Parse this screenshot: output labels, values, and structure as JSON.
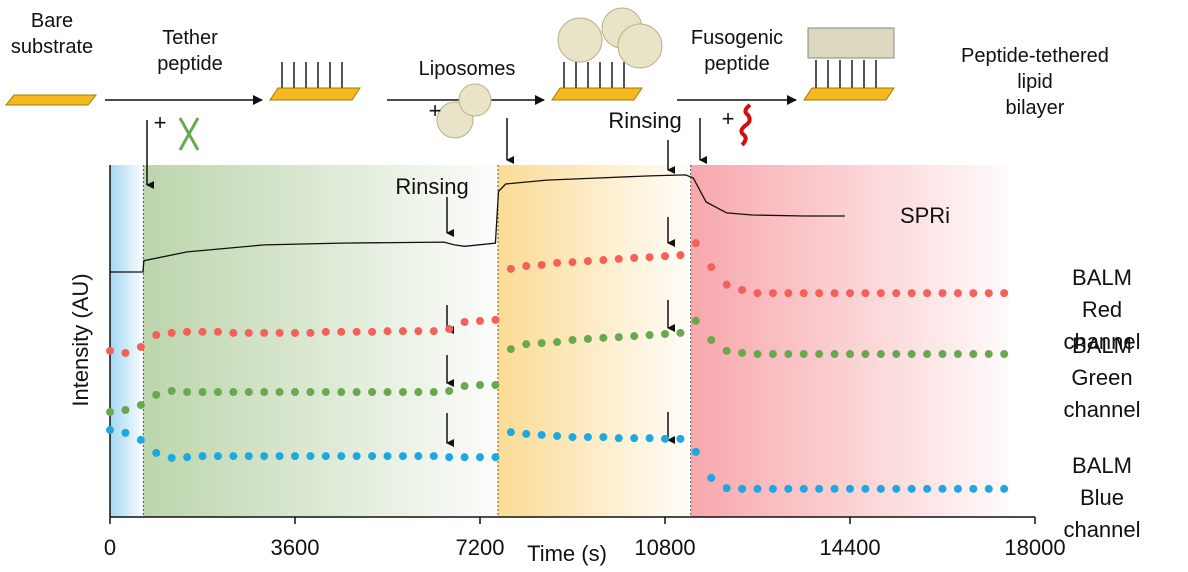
{
  "schematic": {
    "steps": [
      "Bare\nsubstrate",
      "Tether\npeptide",
      "Liposomes",
      "Fusogenic\npeptide",
      "Peptide-tethered lipid\nbilayer"
    ],
    "plus": [
      "+",
      "+",
      "+"
    ],
    "rinsing": "Rinsing"
  },
  "chart_data": {
    "type": "line",
    "xlabel": "Time (s)",
    "ylabel": "Intensity (AU)",
    "annotation": "Rinsing",
    "xlim": [
      0,
      18000
    ],
    "xticks": [
      0,
      3600,
      7200,
      10800,
      14400,
      18000
    ],
    "ylim": [
      0,
      100
    ],
    "regions": [
      {
        "start": 0,
        "end": 650,
        "color": "#9fd6f2"
      },
      {
        "start": 650,
        "end": 7550,
        "color": "#b9d3a8"
      },
      {
        "start": 7550,
        "end": 11300,
        "color": "#fbd98f"
      },
      {
        "start": 11300,
        "end": 17500,
        "color": "#f7a3a8"
      }
    ],
    "x": [
      0,
      300,
      600,
      900,
      1200,
      1500,
      1800,
      2100,
      2400,
      2700,
      3000,
      3300,
      3600,
      3900,
      4200,
      4500,
      4800,
      5100,
      5400,
      5700,
      6000,
      6300,
      6600,
      6900,
      7200,
      7500,
      7800,
      8100,
      8400,
      8700,
      9000,
      9300,
      9600,
      9900,
      10200,
      10500,
      10800,
      11100,
      11400,
      11700,
      12000,
      12300,
      12600,
      12900,
      13200,
      13500,
      13800,
      14100,
      14400,
      14700,
      15000,
      15300,
      15600,
      15900,
      16200,
      16500,
      16800,
      17100,
      17400
    ],
    "series": [
      {
        "name": "SPRi",
        "style": "line",
        "color": "#111111",
        "x": [
          0,
          640,
          660,
          1500,
          3000,
          4500,
          6500,
          6700,
          6900,
          7500,
          7560,
          7700,
          8500,
          9500,
          10500,
          11200,
          11350,
          11600,
          12000,
          12500,
          13500,
          14300
        ],
        "values": [
          69.6,
          69.6,
          72.8,
          75.3,
          77.3,
          77.8,
          78.1,
          77.3,
          76.9,
          77.8,
          92.5,
          94.6,
          95.7,
          96.3,
          96.9,
          97.2,
          96.3,
          89.5,
          86.4,
          85.8,
          85.5,
          85.5
        ]
      },
      {
        "name": "BALM\nRed channel",
        "style": "dots",
        "color": "#f4605a",
        "values": [
          47.2,
          46.6,
          48.3,
          51.7,
          52.3,
          52.6,
          52.6,
          52.6,
          52.3,
          52.3,
          52.3,
          52.3,
          52.3,
          52.3,
          52.6,
          52.6,
          52.6,
          52.6,
          52.8,
          52.8,
          52.8,
          52.8,
          53.4,
          55.4,
          55.7,
          56.0,
          70.5,
          71.3,
          71.6,
          72.2,
          72.4,
          72.7,
          73.0,
          73.3,
          73.6,
          73.8,
          74.1,
          74.4,
          77.8,
          71.0,
          66.0,
          64.5,
          63.6,
          63.6,
          63.6,
          63.6,
          63.6,
          63.6,
          63.6,
          63.6,
          63.6,
          63.6,
          63.6,
          63.6,
          63.6,
          63.6,
          63.6,
          63.6,
          63.6
        ]
      },
      {
        "name": "BALM\nGreen channel",
        "style": "dots",
        "color": "#6aa84f",
        "values": [
          29.8,
          30.4,
          31.8,
          34.7,
          35.8,
          35.5,
          35.5,
          35.5,
          35.5,
          35.5,
          35.5,
          35.5,
          35.5,
          35.5,
          35.5,
          35.5,
          35.5,
          35.5,
          35.5,
          35.5,
          35.5,
          35.5,
          35.8,
          37.2,
          37.5,
          37.5,
          47.7,
          49.1,
          49.4,
          49.7,
          50.3,
          50.6,
          50.9,
          51.1,
          51.4,
          51.7,
          52.0,
          52.3,
          55.7,
          50.3,
          47.2,
          46.6,
          46.3,
          46.3,
          46.3,
          46.3,
          46.3,
          46.3,
          46.3,
          46.3,
          46.3,
          46.3,
          46.3,
          46.3,
          46.3,
          46.3,
          46.3,
          46.3,
          46.3
        ]
      },
      {
        "name": "BALM\nBlue channel",
        "style": "dots",
        "color": "#1ea8e0",
        "values": [
          24.7,
          23.9,
          21.9,
          18.2,
          16.8,
          17.0,
          17.3,
          17.3,
          17.3,
          17.3,
          17.3,
          17.3,
          17.3,
          17.3,
          17.3,
          17.3,
          17.3,
          17.3,
          17.3,
          17.3,
          17.3,
          17.3,
          17.0,
          17.0,
          17.0,
          17.0,
          24.1,
          23.6,
          23.3,
          23.0,
          22.7,
          22.7,
          22.7,
          22.4,
          22.4,
          22.4,
          22.2,
          22.2,
          18.5,
          11.1,
          8.2,
          8.0,
          8.0,
          8.0,
          8.0,
          8.0,
          8.0,
          8.0,
          8.0,
          8.0,
          8.0,
          8.0,
          8.0,
          8.0,
          8.0,
          8.0,
          8.0,
          8.0,
          8.0
        ]
      }
    ]
  }
}
